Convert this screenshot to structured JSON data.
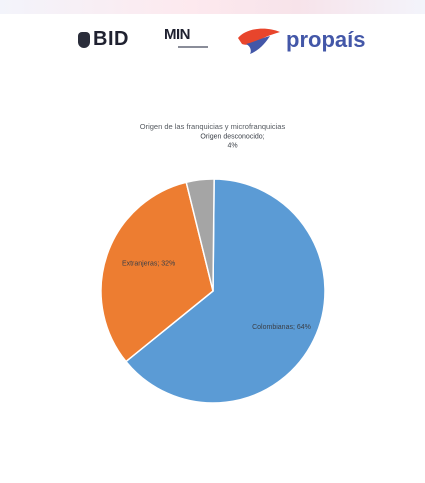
{
  "logos": {
    "bid": "BID",
    "min": "MIN",
    "propais": "propaís"
  },
  "chart_data": {
    "type": "pie",
    "title": "Origen de las franquicias y microfranquicias",
    "slices": [
      {
        "label": "Colombianas",
        "value": 64,
        "display": "Colombianas; 64%",
        "color": "#5b9bd5"
      },
      {
        "label": "Extranjeras",
        "value": 32,
        "display": "Extranjeras; 32%",
        "color": "#ed7d31"
      },
      {
        "label": "Origen desconocido",
        "value": 4,
        "display": "Origen desconocido; 4%",
        "color": "#a5a5a5"
      }
    ],
    "legend": "none"
  }
}
